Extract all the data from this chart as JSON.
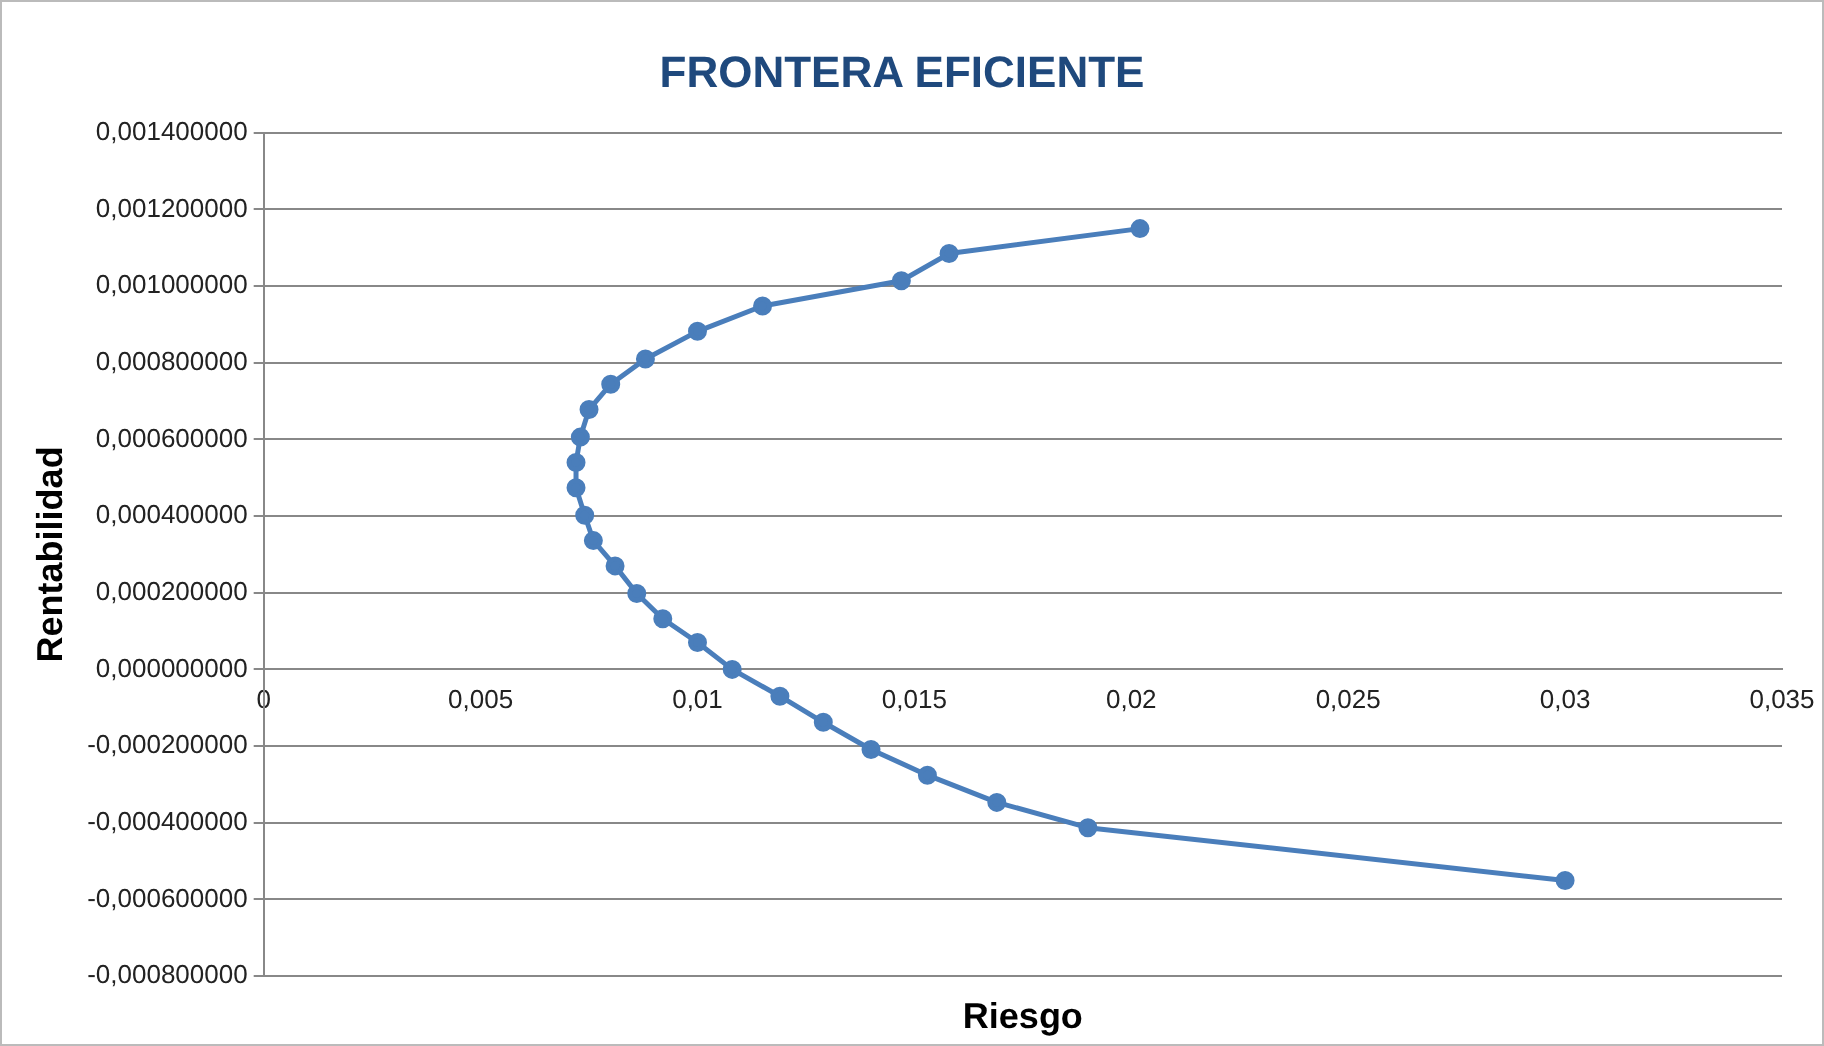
{
  "chart_data": {
    "type": "scatter",
    "title": "FRONTERA EFICIENTE",
    "xlabel": "Riesgo",
    "ylabel": "Rentabilidad",
    "series": [
      {
        "type": "line",
        "color": "#4a7ebb",
        "x": [
          0.0202,
          0.0158,
          0.0147,
          0.0115,
          0.01,
          0.0088,
          0.008,
          0.0075,
          0.0073,
          0.0072,
          0.0072,
          0.0074,
          0.0076,
          0.0081,
          0.0086,
          0.0092,
          0.01,
          0.0108,
          0.0119,
          0.0129,
          0.014,
          0.0153,
          0.0169,
          0.019,
          0.03
        ],
        "values": [
          0.00115,
          0.001085,
          0.001014,
          0.000948,
          0.000882,
          0.00081,
          0.000744,
          0.000678,
          0.000606,
          0.00054,
          0.000474,
          0.000402,
          0.000336,
          0.00027,
          0.000198,
          0.000132,
          7e-05,
          0.0,
          -7e-05,
          -0.000138,
          -0.000209,
          -0.000276,
          -0.000347,
          -0.000413,
          -0.000551
        ]
      }
    ],
    "xlim": [
      0,
      0.035
    ],
    "xticks": [
      0,
      {
        "value": 0.005,
        "label": "0,005"
      },
      {
        "value": 0.01,
        "label": "0,01"
      },
      {
        "value": 0.015,
        "label": "0,015"
      },
      {
        "value": 0.02,
        "label": "0,02"
      },
      {
        "value": 0.025,
        "label": "0,025"
      },
      {
        "value": 0.03,
        "label": "0,03"
      },
      {
        "value": 0.035,
        "label": "0,035"
      }
    ],
    "ylim": [
      -0.0008,
      0.0014
    ],
    "yticks": [
      {
        "value": -0.0008,
        "label": "-0,000800000"
      },
      {
        "value": -0.0006,
        "label": "-0,000600000"
      },
      {
        "value": -0.0004,
        "label": "-0,000400000"
      },
      {
        "value": -0.0002,
        "label": "-0,000200000"
      },
      {
        "value": 0,
        "label": "0,000000000"
      },
      {
        "value": 0.0002,
        "label": "0,000200000"
      },
      {
        "value": 0.0004,
        "label": "0,000400000"
      },
      {
        "value": 0.0006,
        "label": "0,000600000"
      },
      {
        "value": 0.0008,
        "label": "0,000800000"
      },
      {
        "value": 0.001,
        "label": "0,001000000"
      },
      {
        "value": 0.0012,
        "label": "0,001200000"
      },
      {
        "value": 0.0014,
        "label": "0,001400000"
      }
    ],
    "grid": "y",
    "marker": "circle",
    "line_style": "solid",
    "legend": false
  }
}
